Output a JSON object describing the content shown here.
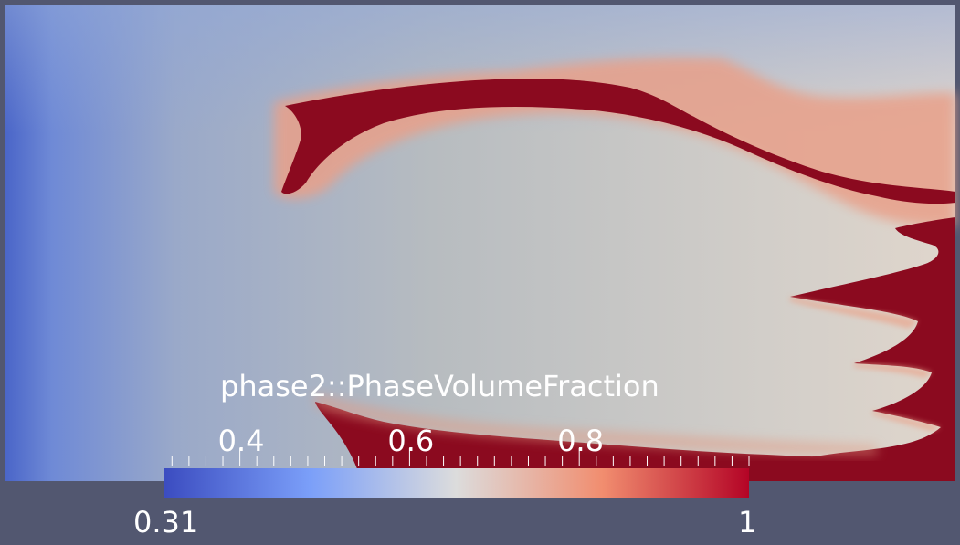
{
  "scalar_bar": {
    "title": "phase2::PhaseVolumeFraction",
    "range_min": 0.31,
    "range_max": 1,
    "min_label": "0.31",
    "max_label": "1",
    "tick_labels": [
      {
        "value": 0.4,
        "text": "0.4"
      },
      {
        "value": 0.6,
        "text": "0.6"
      },
      {
        "value": 0.8,
        "text": "0.8"
      }
    ],
    "minor_tick_step": 0.02,
    "colormap": [
      "#3b4cc0",
      "#8db0fe",
      "#dddcdc",
      "#f49a7b",
      "#b40426"
    ]
  },
  "colors": {
    "background": "#525770",
    "low": "#3b4cc0",
    "mid": "#dddcdc",
    "high": "#8b0a1f"
  }
}
